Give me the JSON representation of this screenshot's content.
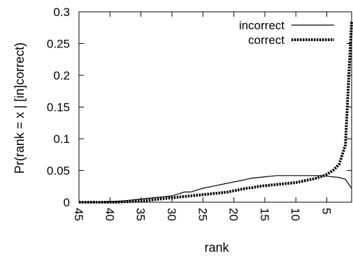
{
  "chart_data": {
    "type": "line",
    "title": "",
    "xlabel": "rank",
    "ylabel": "Pr(rank = x | [in]correct)",
    "x_reversed": true,
    "xlim": [
      1,
      45
    ],
    "ylim": [
      0,
      0.3
    ],
    "xticks": [
      45,
      40,
      35,
      30,
      25,
      20,
      15,
      10,
      5
    ],
    "yticks": [
      0,
      0.05,
      0.1,
      0.15,
      0.2,
      0.25,
      0.3
    ],
    "xtick_labels": [
      "45",
      "40",
      "35",
      "30",
      "25",
      "20",
      "15",
      "10",
      "5"
    ],
    "ytick_labels": [
      "0",
      "0.05",
      "0.1",
      "0.15",
      "0.2",
      "0.25",
      "0.3"
    ],
    "grid": false,
    "legend_position": "top-right",
    "series": [
      {
        "name": "incorrect",
        "style": "solid",
        "color": "#000000",
        "x": [
          45,
          44,
          43,
          42,
          41,
          40,
          39,
          38,
          37,
          36,
          35,
          34,
          33,
          32,
          31,
          30,
          29,
          28,
          27,
          26,
          25,
          24,
          23,
          22,
          21,
          20,
          19,
          18,
          17,
          16,
          15,
          14,
          13,
          12,
          11,
          10,
          9,
          8,
          7,
          6,
          5,
          4,
          3,
          2,
          1
        ],
        "y": [
          0.0,
          0.0,
          0.0,
          0.0,
          0.0005,
          0.001,
          0.0015,
          0.002,
          0.003,
          0.004,
          0.005,
          0.006,
          0.007,
          0.008,
          0.009,
          0.01,
          0.013,
          0.016,
          0.016,
          0.019,
          0.022,
          0.024,
          0.026,
          0.028,
          0.03,
          0.032,
          0.034,
          0.036,
          0.038,
          0.039,
          0.04,
          0.041,
          0.042,
          0.042,
          0.042,
          0.042,
          0.042,
          0.042,
          0.042,
          0.042,
          0.041,
          0.04,
          0.039,
          0.036,
          0.022
        ]
      },
      {
        "name": "correct",
        "style": "dotted",
        "color": "#000000",
        "x": [
          45,
          44,
          43,
          42,
          41,
          40,
          39,
          38,
          37,
          36,
          35,
          34,
          33,
          32,
          31,
          30,
          29,
          28,
          27,
          26,
          25,
          24,
          23,
          22,
          21,
          20,
          19,
          18,
          17,
          16,
          15,
          14,
          13,
          12,
          11,
          10,
          9,
          8,
          7,
          6,
          5,
          4,
          3,
          2,
          1
        ],
        "y": [
          0.0,
          0.0,
          0.0,
          0.0,
          0.0,
          0.0,
          0.0,
          0.0005,
          0.001,
          0.0015,
          0.002,
          0.003,
          0.004,
          0.005,
          0.006,
          0.007,
          0.008,
          0.009,
          0.01,
          0.011,
          0.012,
          0.013,
          0.014,
          0.015,
          0.016,
          0.018,
          0.02,
          0.022,
          0.023,
          0.025,
          0.026,
          0.027,
          0.028,
          0.029,
          0.03,
          0.031,
          0.033,
          0.035,
          0.037,
          0.04,
          0.044,
          0.05,
          0.06,
          0.09,
          0.285
        ]
      }
    ]
  }
}
